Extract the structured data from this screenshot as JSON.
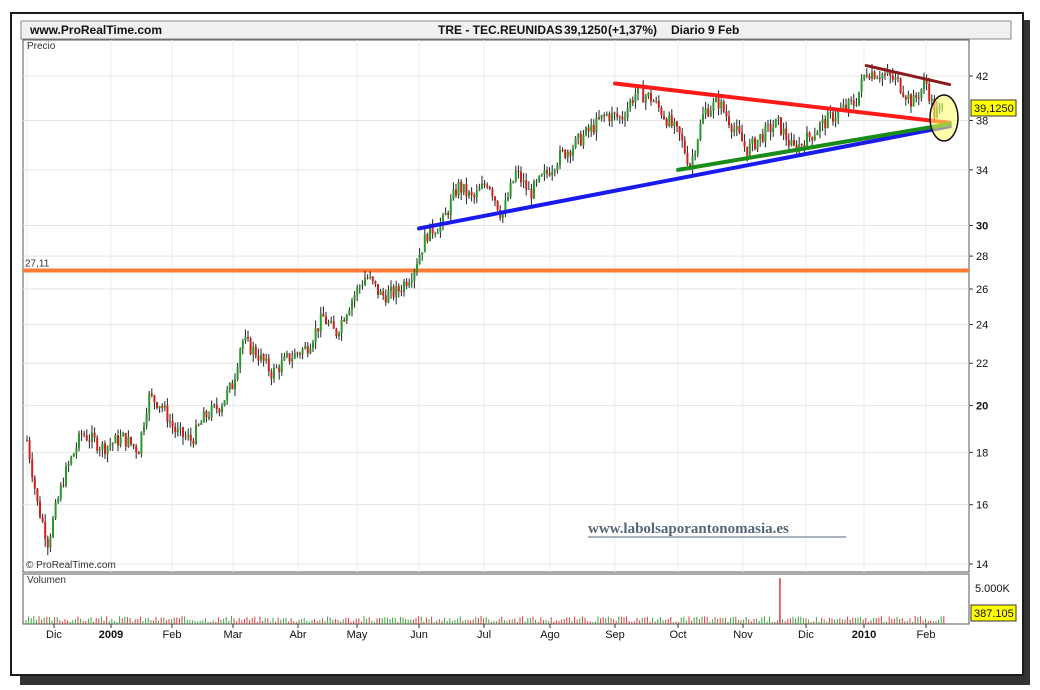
{
  "header": {
    "site": "www.ProRealTime.com",
    "instrument": "TRE - TEC.REUNIDAS",
    "last": "39,1250",
    "change": "(+1,37%)",
    "period": "Diario",
    "date": "9 Feb"
  },
  "chart_data": {
    "type": "candlestick",
    "price_panel_label": "Precio",
    "volume_panel_label": "Volumen",
    "copyright": "© ProRealTime.com",
    "watermark": "www.labolsaporantonomasia.es",
    "y_ticks": [
      "42",
      "38",
      "34",
      "30",
      "28",
      "26",
      "24",
      "22",
      "20",
      "18",
      "16",
      "14"
    ],
    "y_tick_values": [
      42,
      38,
      34,
      30,
      28,
      26,
      24,
      22,
      20,
      18,
      16,
      14
    ],
    "last_price_badge": "39,1250",
    "horizontal_level": {
      "value": 27.11,
      "label": "27,11",
      "color": "#ff7a33"
    },
    "volume_ticks": [
      "5.000K"
    ],
    "volume_badge": "387.105",
    "x_months": [
      "Dic",
      "2009",
      "Feb",
      "Mar",
      "Abr",
      "May",
      "Jun",
      "Jul",
      "Ago",
      "Sep",
      "Oct",
      "Nov",
      "Dic",
      "2010",
      "Feb"
    ],
    "x_month_bold": [
      false,
      true,
      false,
      false,
      false,
      false,
      false,
      false,
      false,
      false,
      false,
      false,
      false,
      true,
      false
    ],
    "trendlines": [
      {
        "name": "red-resistance",
        "color": "#ff1a1a",
        "from": {
          "date": "2009-09-01",
          "price": 41.3
        },
        "to": {
          "date": "2010-02-12",
          "price": 37.8
        }
      },
      {
        "name": "blue-support",
        "color": "#1a1aee",
        "from": {
          "date": "2009-06-01",
          "price": 29.8
        },
        "to": {
          "date": "2010-02-12",
          "price": 37.5
        }
      },
      {
        "name": "green-support",
        "color": "#1a8c1a",
        "from": {
          "date": "2009-10-01",
          "price": 34.0
        },
        "to": {
          "date": "2010-02-12",
          "price": 37.7
        }
      },
      {
        "name": "darkred-resistance",
        "color": "#8b1a1a",
        "from": {
          "date": "2010-01-05",
          "price": 43.0
        },
        "to": {
          "date": "2010-02-12",
          "price": 41.2
        }
      }
    ],
    "path": [
      {
        "date": "2008-12-01",
        "price": 18.5
      },
      {
        "date": "2008-12-05",
        "price": 16.0
      },
      {
        "date": "2008-12-09",
        "price": 14.7
      },
      {
        "date": "2008-12-15",
        "price": 17.0
      },
      {
        "date": "2008-12-22",
        "price": 18.8
      },
      {
        "date": "2008-12-30",
        "price": 18.2
      },
      {
        "date": "2009-01-08",
        "price": 18.6
      },
      {
        "date": "2009-01-16",
        "price": 18.1
      },
      {
        "date": "2009-01-21",
        "price": 20.4
      },
      {
        "date": "2009-01-27",
        "price": 20.1
      },
      {
        "date": "2009-02-04",
        "price": 18.8
      },
      {
        "date": "2009-02-11",
        "price": 18.5
      },
      {
        "date": "2009-02-17",
        "price": 19.5
      },
      {
        "date": "2009-02-24",
        "price": 20.0
      },
      {
        "date": "2009-03-02",
        "price": 21.0
      },
      {
        "date": "2009-03-06",
        "price": 23.2
      },
      {
        "date": "2009-03-13",
        "price": 22.5
      },
      {
        "date": "2009-03-20",
        "price": 21.5
      },
      {
        "date": "2009-03-27",
        "price": 22.2
      },
      {
        "date": "2009-04-06",
        "price": 22.8
      },
      {
        "date": "2009-04-15",
        "price": 24.4
      },
      {
        "date": "2009-04-22",
        "price": 23.5
      },
      {
        "date": "2009-04-30",
        "price": 25.2
      },
      {
        "date": "2009-05-08",
        "price": 26.8
      },
      {
        "date": "2009-05-15",
        "price": 25.6
      },
      {
        "date": "2009-05-22",
        "price": 25.8
      },
      {
        "date": "2009-05-29",
        "price": 27.0
      },
      {
        "date": "2009-06-05",
        "price": 29.5
      },
      {
        "date": "2009-06-12",
        "price": 30.2
      },
      {
        "date": "2009-06-19",
        "price": 32.8
      },
      {
        "date": "2009-06-26",
        "price": 31.8
      },
      {
        "date": "2009-07-03",
        "price": 33.2
      },
      {
        "date": "2009-07-10",
        "price": 30.6
      },
      {
        "date": "2009-07-17",
        "price": 33.8
      },
      {
        "date": "2009-07-24",
        "price": 32.2
      },
      {
        "date": "2009-07-31",
        "price": 33.5
      },
      {
        "date": "2009-08-07",
        "price": 35.0
      },
      {
        "date": "2009-08-14",
        "price": 36.0
      },
      {
        "date": "2009-08-21",
        "price": 37.2
      },
      {
        "date": "2009-08-28",
        "price": 38.5
      },
      {
        "date": "2009-09-04",
        "price": 38.2
      },
      {
        "date": "2009-09-11",
        "price": 40.5
      },
      {
        "date": "2009-09-18",
        "price": 40.0
      },
      {
        "date": "2009-09-25",
        "price": 38.3
      },
      {
        "date": "2009-10-02",
        "price": 36.6
      },
      {
        "date": "2009-10-07",
        "price": 34.3
      },
      {
        "date": "2009-10-14",
        "price": 38.8
      },
      {
        "date": "2009-10-21",
        "price": 39.6
      },
      {
        "date": "2009-10-28",
        "price": 37.5
      },
      {
        "date": "2009-11-04",
        "price": 35.5
      },
      {
        "date": "2009-11-11",
        "price": 36.8
      },
      {
        "date": "2009-11-18",
        "price": 37.8
      },
      {
        "date": "2009-11-25",
        "price": 35.6
      },
      {
        "date": "2009-12-02",
        "price": 36.5
      },
      {
        "date": "2009-12-09",
        "price": 37.5
      },
      {
        "date": "2009-12-16",
        "price": 38.3
      },
      {
        "date": "2009-12-23",
        "price": 39.0
      },
      {
        "date": "2009-12-30",
        "price": 39.6
      },
      {
        "date": "2010-01-05",
        "price": 42.5
      },
      {
        "date": "2010-01-12",
        "price": 42.2
      },
      {
        "date": "2010-01-19",
        "price": 41.5
      },
      {
        "date": "2010-01-26",
        "price": 39.5
      },
      {
        "date": "2010-02-01",
        "price": 41.5
      },
      {
        "date": "2010-02-05",
        "price": 38.5
      },
      {
        "date": "2010-02-09",
        "price": 39.125
      }
    ],
    "volume_spike": {
      "date": "2009-11-19",
      "value": 5000
    }
  }
}
